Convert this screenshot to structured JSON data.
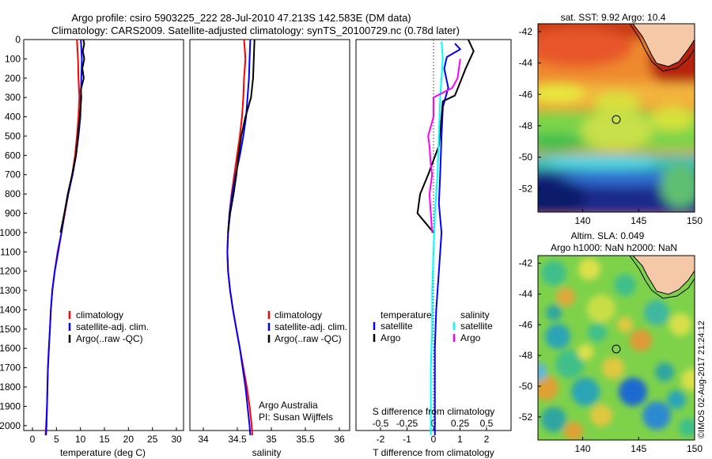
{
  "header": {
    "title_line1": "Argo profile: csiro 5903225_222 28-Jul-2010 47.213S 142.583E (DM data)",
    "title_line2": "Climatology: CARS2009. Satellite-adjusted climatology: synTS_20100729.nc (0.78d later)"
  },
  "colors": {
    "climatology": "#ff0000",
    "satellite": "#0000ff",
    "argo": "#000000",
    "salinity_satellite": "#00ffff",
    "salinity_argo": "#ff00ff",
    "land": "#f5c9a8"
  },
  "depth_ticks": [
    "0",
    "100",
    "200",
    "300",
    "400",
    "500",
    "600",
    "700",
    "800",
    "900",
    "1000",
    "1100",
    "1200",
    "1300",
    "1400",
    "1500",
    "1600",
    "1700",
    "1800",
    "1900",
    "2000"
  ],
  "panels": {
    "temperature": {
      "xlabel": "temperature (deg C)",
      "ticks": [
        "0",
        "5",
        "10",
        "15",
        "20",
        "25",
        "30"
      ],
      "legend": [
        "climatology",
        "satellite-adj. clim.",
        "Argo(..raw -QC)"
      ]
    },
    "salinity": {
      "xlabel": "salinity",
      "ticks": [
        "34",
        "34.5",
        "35",
        "35.5",
        "36"
      ],
      "legend": [
        "climatology",
        "satellite-adj. clim.",
        "Argo(..raw -QC)"
      ],
      "credit_line1": "Argo Australia",
      "credit_line2": "PI: Susan Wijffels"
    },
    "difference": {
      "xlabel": "T difference from climatology",
      "xlabel_top": "S difference from climatology",
      "ticks_bottom": [
        "-2",
        "-1",
        "0",
        "1",
        "2"
      ],
      "ticks_top": [
        "-0.5",
        "-0.25",
        "0",
        "0.25",
        "0.5"
      ],
      "legend_temp_title": "temperature",
      "legend_temp": [
        "satellite",
        "Argo"
      ],
      "legend_sal_title": "salinity",
      "legend_sal": [
        "satellite",
        "Argo"
      ]
    },
    "sst_map": {
      "title": "sat. SST: 9.92  Argo: 10.4",
      "xticks": [
        "140",
        "145",
        "150"
      ],
      "yticks": [
        "-42",
        "-44",
        "-46",
        "-48",
        "-50",
        "-52"
      ]
    },
    "sla_map": {
      "title_line1": "Altim. SLA: 0.049",
      "title_line2": "Argo h1000: NaN h2000: NaN",
      "xticks": [
        "140",
        "145",
        "150"
      ],
      "yticks": [
        "-42",
        "-44",
        "-46",
        "-48",
        "-50",
        "-52"
      ]
    }
  },
  "watermark": "©IMOS 02-Aug-2017 21:24:12",
  "chart_data": [
    {
      "type": "line",
      "xlabel": "temperature (deg C)",
      "ylabel": "",
      "xlim": [
        -2,
        31
      ],
      "ylim": [
        2060,
        0
      ],
      "series": [
        {
          "name": "climatology",
          "color": "#ff0000",
          "points": [
            [
              9.0,
              0
            ],
            [
              9.2,
              100
            ],
            [
              9.3,
              200
            ],
            [
              9.5,
              300
            ],
            [
              9.3,
              400
            ],
            [
              9.0,
              500
            ],
            [
              8.6,
              600
            ],
            [
              8.0,
              700
            ],
            [
              7.2,
              800
            ],
            [
              6.5,
              900
            ],
            [
              5.8,
              1000
            ],
            [
              5.0,
              1100
            ],
            [
              4.4,
              1200
            ],
            [
              3.9,
              1300
            ],
            [
              3.6,
              1400
            ],
            [
              3.4,
              1500
            ],
            [
              3.2,
              1600
            ],
            [
              3.0,
              1700
            ],
            [
              2.9,
              1800
            ],
            [
              2.8,
              1900
            ],
            [
              2.6,
              2000
            ],
            [
              2.5,
              2050
            ]
          ]
        },
        {
          "name": "satellite-adj. clim.",
          "color": "#0000ff",
          "points": [
            [
              9.8,
              0
            ],
            [
              10.0,
              100
            ],
            [
              9.9,
              200
            ],
            [
              9.8,
              300
            ],
            [
              9.7,
              400
            ],
            [
              9.3,
              500
            ],
            [
              8.8,
              600
            ],
            [
              8.1,
              700
            ],
            [
              7.2,
              800
            ],
            [
              6.4,
              900
            ],
            [
              5.8,
              1000
            ],
            [
              5.1,
              1100
            ],
            [
              4.4,
              1200
            ],
            [
              3.9,
              1300
            ],
            [
              3.6,
              1400
            ],
            [
              3.4,
              1500
            ],
            [
              3.2,
              1600
            ],
            [
              3.0,
              1700
            ],
            [
              2.9,
              1800
            ],
            [
              2.8,
              1900
            ],
            [
              2.7,
              2000
            ],
            [
              2.6,
              2050
            ]
          ]
        },
        {
          "name": "Argo(..raw -QC)",
          "color": "#000000",
          "points": [
            [
              10.3,
              0
            ],
            [
              10.5,
              20
            ],
            [
              10.2,
              60
            ],
            [
              10.5,
              100
            ],
            [
              10.1,
              150
            ],
            [
              10.4,
              200
            ],
            [
              9.8,
              260
            ],
            [
              9.9,
              300
            ],
            [
              9.6,
              400
            ],
            [
              9.2,
              500
            ],
            [
              8.8,
              600
            ],
            [
              8.0,
              700
            ],
            [
              7.1,
              800
            ],
            [
              6.4,
              900
            ],
            [
              5.6,
              1000
            ]
          ]
        }
      ]
    },
    {
      "type": "line",
      "xlabel": "salinity",
      "ylabel": "",
      "xlim": [
        33.8,
        36.1
      ],
      "ylim": [
        2060,
        0
      ],
      "series": [
        {
          "name": "climatology",
          "color": "#ff0000",
          "points": [
            [
              34.58,
              0
            ],
            [
              34.6,
              100
            ],
            [
              34.58,
              200
            ],
            [
              34.57,
              300
            ],
            [
              34.55,
              400
            ],
            [
              34.52,
              500
            ],
            [
              34.48,
              600
            ],
            [
              34.44,
              700
            ],
            [
              34.4,
              800
            ],
            [
              34.37,
              900
            ],
            [
              34.35,
              1000
            ],
            [
              34.34,
              1100
            ],
            [
              34.35,
              1200
            ],
            [
              34.38,
              1300
            ],
            [
              34.42,
              1400
            ],
            [
              34.47,
              1500
            ],
            [
              34.52,
              1600
            ],
            [
              34.57,
              1700
            ],
            [
              34.62,
              1800
            ],
            [
              34.66,
              1900
            ],
            [
              34.69,
              2000
            ],
            [
              34.7,
              2050
            ]
          ]
        },
        {
          "name": "satellite-adj. clim.",
          "color": "#0000ff",
          "points": [
            [
              34.67,
              0
            ],
            [
              34.66,
              100
            ],
            [
              34.65,
              200
            ],
            [
              34.63,
              300
            ],
            [
              34.61,
              400
            ],
            [
              34.57,
              500
            ],
            [
              34.52,
              600
            ],
            [
              34.46,
              700
            ],
            [
              34.41,
              800
            ],
            [
              34.37,
              900
            ],
            [
              34.35,
              1000
            ],
            [
              34.34,
              1100
            ],
            [
              34.35,
              1200
            ],
            [
              34.38,
              1300
            ],
            [
              34.42,
              1400
            ],
            [
              34.47,
              1500
            ],
            [
              34.52,
              1600
            ],
            [
              34.56,
              1700
            ],
            [
              34.6,
              1800
            ],
            [
              34.63,
              1900
            ],
            [
              34.66,
              2000
            ],
            [
              34.67,
              2050
            ]
          ]
        },
        {
          "name": "Argo(..raw -QC)",
          "color": "#000000",
          "points": [
            [
              34.73,
              0
            ],
            [
              34.72,
              100
            ],
            [
              34.71,
              200
            ],
            [
              34.68,
              300
            ],
            [
              34.6,
              400
            ],
            [
              34.54,
              500
            ],
            [
              34.5,
              600
            ],
            [
              34.47,
              700
            ],
            [
              34.43,
              800
            ],
            [
              34.38,
              900
            ],
            [
              34.35,
              1000
            ]
          ]
        }
      ]
    },
    {
      "type": "line",
      "xlabel": "T difference from climatology",
      "ylabel": "",
      "xlim": [
        -2.9,
        2.9
      ],
      "ylim": [
        2060,
        0
      ],
      "series": [
        {
          "name": "temperature satellite",
          "color": "#0000ff",
          "points": [
            [
              0.8,
              20
            ],
            [
              1.0,
              50
            ],
            [
              0.5,
              90
            ],
            [
              0.4,
              150
            ],
            [
              0.55,
              250
            ],
            [
              0.35,
              350
            ],
            [
              0.3,
              500
            ],
            [
              0.25,
              700
            ],
            [
              0.2,
              850
            ],
            [
              0.3,
              1000
            ],
            [
              0.2,
              1200
            ],
            [
              0.1,
              1400
            ],
            [
              0.05,
              1600
            ],
            [
              0.05,
              1800
            ],
            [
              0.05,
              2000
            ],
            [
              0.05,
              2050
            ]
          ]
        },
        {
          "name": "temperature Argo",
          "color": "#000000",
          "points": [
            [
              1.3,
              0
            ],
            [
              1.5,
              60
            ],
            [
              1.2,
              150
            ],
            [
              1.0,
              220
            ],
            [
              0.8,
              290
            ],
            [
              0.35,
              320
            ],
            [
              0.3,
              400
            ],
            [
              0.2,
              550
            ],
            [
              -0.2,
              700
            ],
            [
              -0.5,
              800
            ],
            [
              -0.6,
              900
            ],
            [
              -0.3,
              950
            ],
            [
              0.0,
              1000
            ]
          ]
        },
        {
          "name": "salinity satellite",
          "color": "#00ffff",
          "points": [
            [
              0.3,
              10
            ],
            [
              0.35,
              100
            ],
            [
              0.3,
              200
            ],
            [
              0.25,
              300
            ],
            [
              0.2,
              500
            ],
            [
              0.15,
              700
            ],
            [
              0.05,
              900
            ],
            [
              0.0,
              1100
            ],
            [
              -0.05,
              1300
            ],
            [
              -0.05,
              1500
            ],
            [
              -0.1,
              1700
            ],
            [
              -0.1,
              1900
            ],
            [
              -0.1,
              2050
            ]
          ]
        },
        {
          "name": "salinity Argo",
          "color": "#ff00ff",
          "points": [
            [
              1.0,
              100
            ],
            [
              0.9,
              200
            ],
            [
              0.7,
              250
            ],
            [
              0.0,
              300
            ],
            [
              0.0,
              400
            ],
            [
              -0.2,
              500
            ],
            [
              -0.15,
              550
            ],
            [
              -0.1,
              650
            ],
            [
              -0.05,
              700
            ],
            [
              -0.15,
              800
            ],
            [
              -0.1,
              900
            ],
            [
              -0.05,
              1000
            ]
          ]
        }
      ]
    },
    {
      "type": "heatmap",
      "title": "sat. SST: 9.92  Argo: 10.4",
      "xlim": [
        136,
        150
      ],
      "ylim": [
        -53.5,
        -41.5
      ],
      "argo_position": [
        142.583,
        -47.213
      ]
    },
    {
      "type": "heatmap",
      "title": "Altim. SLA: 0.049",
      "subtitle": "Argo h1000: NaN h2000: NaN",
      "xlim": [
        136,
        150
      ],
      "ylim": [
        -53.5,
        -41.5
      ],
      "argo_position": [
        142.583,
        -47.213
      ]
    }
  ]
}
